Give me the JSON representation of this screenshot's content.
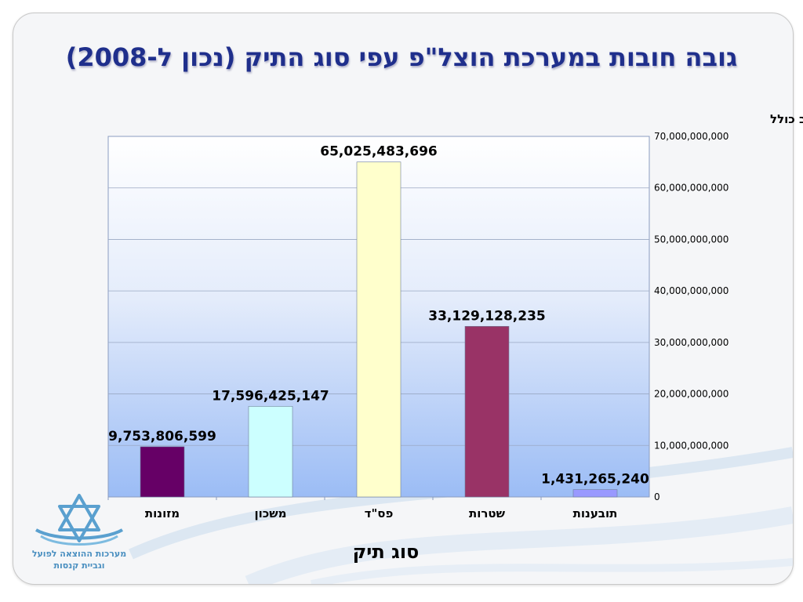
{
  "slide": {
    "title": "גובה חובות במערכת הוצל\"פ עפי סוג התיק (נכון ל-2008)"
  },
  "logo": {
    "line1": "מערכות ההוצאה לפועל",
    "line2": "וגביית קנסות"
  },
  "colors": {
    "title": "#1f2f8c",
    "plot_top": "#ffffff",
    "plot_bottom": "#9bbcf5"
  },
  "chart_data": {
    "type": "bar",
    "title": "",
    "xlabel": "סוג תיק",
    "ylabel": "גובה חוב כולל",
    "ylim": [
      0,
      70000000000
    ],
    "yticks": [
      0,
      10000000000,
      20000000000,
      30000000000,
      40000000000,
      50000000000,
      60000000000,
      70000000000
    ],
    "ytick_labels": [
      "0",
      "10,000,000,000",
      "20,000,000,000",
      "30,000,000,000",
      "40,000,000,000",
      "50,000,000,000",
      "60,000,000,000",
      "70,000,000,000"
    ],
    "y_axis_side": "right",
    "grid": true,
    "legend": false,
    "categories": [
      "מזונות",
      "משכון",
      "פס\"ד",
      "שטרות",
      "תובענות"
    ],
    "values": [
      9753806599,
      17596425147,
      65025483696,
      33129128235,
      1431265240
    ],
    "value_labels": [
      "9,753,806,599",
      "17,596,425,147",
      "65,025,483,696",
      "33,129,128,235",
      "1,431,265,240"
    ],
    "bar_colors": [
      "#660066",
      "#ccffff",
      "#ffffcc",
      "#993366",
      "#9999ff"
    ]
  }
}
